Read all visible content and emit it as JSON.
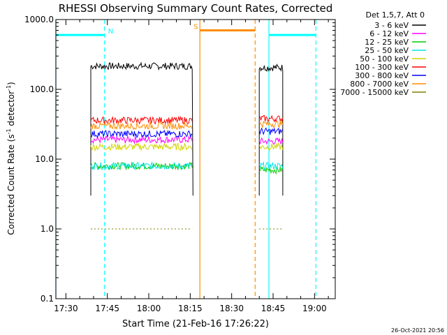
{
  "chart_data": {
    "type": "line",
    "title": "RHESSI Observing Summary Count Rates, Corrected",
    "xlabel": "Start Time (21-Feb-16 17:26:22)",
    "ylabel_main": "Corrected Count Rate (s",
    "ylabel_sup": "-1",
    "ylabel_mid": " detector",
    "ylabel_end": ")",
    "y_scale": "log",
    "ylim": [
      0.1,
      1000
    ],
    "xlim": [
      "17:26:22",
      "19:07:30"
    ],
    "x_ticks": [
      "17:30",
      "17:45",
      "18:00",
      "18:15",
      "18:30",
      "18:45",
      "19:00"
    ],
    "y_ticks": [
      "1000.0",
      "100.0",
      "10.0",
      "1.0",
      "0.1"
    ],
    "legend_title": "Det 1,5,7, Att 0",
    "legend_position": "right",
    "timestamp": "26-Oct-2021 20:56",
    "segments": [
      [
        "17:39:00",
        "18:16:00"
      ],
      [
        "18:40:00",
        "18:48:30"
      ]
    ],
    "series": [
      {
        "name": "3 - 6 keV",
        "color": "#000000",
        "values": [
          215,
          205
        ]
      },
      {
        "name": "6 - 12 keV",
        "color": "#ff00ff",
        "values": [
          19,
          18
        ]
      },
      {
        "name": "12 - 25 keV",
        "color": "#00cc00",
        "values": [
          8,
          7
        ]
      },
      {
        "name": "25 - 50 keV",
        "color": "#00e5e5",
        "values": [
          8,
          8
        ]
      },
      {
        "name": "50 - 100 keV",
        "color": "#d4d400",
        "values": [
          15,
          15
        ]
      },
      {
        "name": "100 - 300 keV",
        "color": "#ff0000",
        "values": [
          36,
          38
        ]
      },
      {
        "name": "300 - 800 keV",
        "color": "#0000ff",
        "values": [
          23,
          25
        ]
      },
      {
        "name": "800 - 7000 keV",
        "color": "#ff8c00",
        "values": [
          30,
          32
        ]
      },
      {
        "name": "7000 - 15000 keV",
        "color": "#808000",
        "values": [
          1.0,
          1.0
        ]
      }
    ],
    "annotations": [
      {
        "label": "N",
        "color": "#00ffff",
        "level": 600,
        "bar": [
          "17:26:22",
          "17:44:00"
        ],
        "dashed_line": "17:44:00",
        "solid_line": "17:26:22"
      },
      {
        "label": "S",
        "color": "#ff8c00",
        "level": 700,
        "bar": [
          "18:18:30",
          "18:38:30"
        ],
        "dashed_line": "18:38:30",
        "solid_line": "18:18:30"
      },
      {
        "label": "",
        "color": "#00ffff",
        "level": 600,
        "bar": [
          "18:43:30",
          "19:00:30"
        ],
        "dashed_line": "19:00:30",
        "solid_line": "18:43:30"
      }
    ]
  }
}
